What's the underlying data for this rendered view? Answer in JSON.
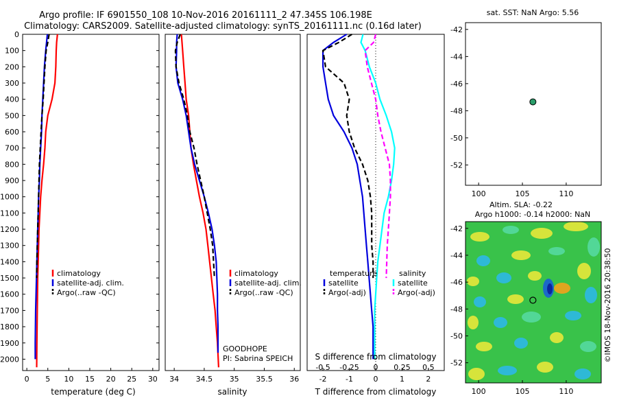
{
  "title": {
    "line1": "Argo profile: IF 6901550_108 10-Nov-2016 20161111_2 47.345S 106.198E",
    "line2": "Climatology: CARS2009. Satellite-adjusted climatology: synTS_20161111.nc (0.16d later)"
  },
  "colors": {
    "climatology": "#ff0000",
    "satellite": "#0000dd",
    "argo": "#000000",
    "sat_salinity": "#00ffff",
    "argo_salinity_adj": "#ff00ff",
    "float_marker": "#2a9d6a"
  },
  "chart_data": [
    {
      "type": "line",
      "name": "temperature-panel",
      "xlabel": "temperature (deg C)",
      "ylabel": "",
      "xlim": [
        -1,
        31.5
      ],
      "ylim": [
        2070,
        0
      ],
      "xticks": [
        0,
        5,
        10,
        15,
        20,
        25,
        30
      ],
      "yticks": [
        0,
        100,
        200,
        300,
        400,
        500,
        600,
        700,
        800,
        900,
        1000,
        1100,
        1200,
        1300,
        1400,
        1500,
        1600,
        1700,
        1800,
        1900,
        2000
      ],
      "legend": {
        "position": "lower-middle",
        "entries": [
          "climatology",
          "satellite-adj. clim.",
          "Argo(..raw -QC)"
        ]
      },
      "series": [
        {
          "name": "climatology",
          "style": "solid",
          "x": [
            7.3,
            7.1,
            7.0,
            6.9,
            6.7,
            6.0,
            5.0,
            4.5,
            4.3,
            4.0,
            3.6,
            3.3,
            3.1,
            2.9,
            2.8,
            2.7,
            2.6,
            2.55,
            2.5,
            2.45,
            2.4,
            2.35
          ],
          "y": [
            0,
            50,
            100,
            200,
            300,
            400,
            500,
            600,
            700,
            800,
            900,
            1000,
            1100,
            1200,
            1300,
            1400,
            1500,
            1600,
            1700,
            1800,
            1900,
            2050
          ]
        },
        {
          "name": "satellite-adj. clim.",
          "style": "solid",
          "x": [
            4.9,
            4.7,
            4.5,
            4.2,
            4.0,
            3.8,
            3.6,
            3.5,
            3.3,
            3.1,
            3.0,
            2.8,
            2.7,
            2.6,
            2.5,
            2.4,
            2.3,
            2.2,
            2.1,
            2.05,
            2.0,
            2.0
          ],
          "y": [
            0,
            50,
            100,
            200,
            300,
            400,
            500,
            600,
            700,
            800,
            900,
            1000,
            1100,
            1200,
            1300,
            1400,
            1500,
            1600,
            1700,
            1800,
            1900,
            2000
          ]
        },
        {
          "name": "Argo(..raw -QC)",
          "style": "dashed",
          "x": [
            5.3,
            5.0,
            4.6,
            4.3,
            4.1,
            3.9,
            3.6,
            3.4,
            3.2,
            3.0,
            2.9,
            2.8,
            2.7,
            2.6,
            2.5,
            2.4,
            2.35
          ],
          "y": [
            0,
            50,
            100,
            200,
            300,
            400,
            500,
            600,
            700,
            800,
            900,
            1000,
            1100,
            1200,
            1300,
            1400,
            1500
          ]
        }
      ]
    },
    {
      "type": "line",
      "name": "salinity-panel",
      "xlabel": "salinity",
      "ylabel": "",
      "xlim": [
        33.85,
        36.1
      ],
      "ylim": [
        2070,
        0
      ],
      "xticks": [
        34,
        34.5,
        35,
        35.5,
        36
      ],
      "xticklabels": [
        "34",
        "34.5",
        "35",
        "35.5",
        "36"
      ],
      "legend": {
        "position": "lower-middle",
        "entries": [
          "climatology",
          "satellite-adj. clim.",
          "Argo(..raw -QC)"
        ]
      },
      "annotations": [
        "GOODHOPE",
        "PI: Sabrina SPEICH"
      ],
      "series": [
        {
          "name": "climatology",
          "style": "solid",
          "x": [
            34.12,
            34.13,
            34.14,
            34.16,
            34.18,
            34.2,
            34.24,
            34.26,
            34.28,
            34.32,
            34.37,
            34.42,
            34.48,
            34.53,
            34.56,
            34.59,
            34.62,
            34.65,
            34.68,
            34.7,
            34.72,
            34.74
          ],
          "y": [
            0,
            50,
            100,
            200,
            300,
            400,
            500,
            600,
            700,
            800,
            900,
            1000,
            1100,
            1200,
            1300,
            1400,
            1500,
            1600,
            1700,
            1800,
            1900,
            2050
          ]
        },
        {
          "name": "satellite-adj. clim.",
          "style": "solid",
          "x": [
            34.05,
            34.04,
            34.04,
            34.03,
            34.06,
            34.14,
            34.2,
            34.24,
            34.28,
            34.34,
            34.42,
            34.5,
            34.57,
            34.63,
            34.67,
            34.7,
            34.71,
            34.72,
            34.72,
            34.73,
            34.73
          ],
          "y": [
            0,
            50,
            100,
            200,
            300,
            400,
            500,
            600,
            700,
            800,
            900,
            1000,
            1100,
            1200,
            1300,
            1400,
            1500,
            1600,
            1700,
            1800,
            1960
          ]
        },
        {
          "name": "Argo(..raw -QC)",
          "style": "dashed",
          "x": [
            34.1,
            34.05,
            34.02,
            34.03,
            34.08,
            34.16,
            34.22,
            34.26,
            34.33,
            34.38,
            34.44,
            34.5,
            34.55,
            34.6,
            34.64,
            34.67
          ],
          "y": [
            0,
            50,
            100,
            200,
            300,
            400,
            500,
            600,
            700,
            800,
            900,
            1000,
            1100,
            1200,
            1300,
            1500
          ]
        }
      ]
    },
    {
      "type": "line",
      "name": "difference-panel",
      "xlabel": "T difference from climatology",
      "xlabel_top": "S difference from climatology",
      "xlim": [
        -2.6,
        2.6
      ],
      "ylim": [
        2070,
        0
      ],
      "xticks": [
        -2,
        -1,
        0,
        1,
        2
      ],
      "xticklabels": [
        "-2",
        "-1",
        "0",
        "1",
        "2"
      ],
      "s_xticks": [
        -0.5,
        -0.25,
        0,
        0.25,
        0.5
      ],
      "s_xticklabels": [
        "-0.5",
        "-0.25",
        "0",
        "0.25",
        "0.5"
      ],
      "legend": {
        "position": "lower-middle",
        "groups": [
          {
            "title": "temperature",
            "entries": [
              "satellite",
              "Argo(-adj)"
            ]
          },
          {
            "title": "salinity",
            "entries": [
              "satellite",
              "Argo(-adj)"
            ]
          }
        ]
      },
      "series": [
        {
          "name": "T satellite",
          "style": "solid",
          "x": [
            -1.1,
            -1.6,
            -2.0,
            -2.0,
            -1.9,
            -1.8,
            -1.6,
            -1.2,
            -0.9,
            -0.7,
            -0.6,
            -0.5,
            -0.45,
            -0.4,
            -0.35,
            -0.3,
            -0.25,
            -0.2,
            -0.15,
            -0.1,
            -0.1
          ],
          "y": [
            0,
            50,
            100,
            200,
            300,
            400,
            500,
            600,
            700,
            800,
            900,
            1000,
            1100,
            1200,
            1300,
            1400,
            1500,
            1600,
            1700,
            1800,
            2000
          ]
        },
        {
          "name": "T Argo(-adj)",
          "style": "dashed",
          "x": [
            -0.9,
            -1.4,
            -2.0,
            -1.9,
            -1.2,
            -1.0,
            -1.1,
            -1.0,
            -0.8,
            -0.5,
            -0.3,
            -0.2,
            -0.15,
            -0.15,
            -0.15,
            -0.1,
            -0.1
          ],
          "y": [
            0,
            50,
            100,
            200,
            300,
            400,
            500,
            600,
            700,
            800,
            900,
            1000,
            1100,
            1200,
            1300,
            1400,
            1500
          ]
        },
        {
          "name": "S satellite",
          "style": "solid",
          "x": [
            -0.12,
            -0.14,
            -0.1,
            -0.06,
            0.0,
            0.04,
            0.1,
            0.15,
            0.18,
            0.17,
            0.15,
            0.12,
            0.08,
            0.06,
            0.04,
            0.02,
            0.01,
            0.0,
            -0.01,
            -0.01,
            -0.01
          ],
          "y": [
            0,
            50,
            100,
            200,
            300,
            400,
            500,
            600,
            700,
            800,
            900,
            1000,
            1100,
            1200,
            1300,
            1400,
            1500,
            1600,
            1700,
            1800,
            2000
          ]
        },
        {
          "name": "S Argo(-adj)",
          "style": "dashed",
          "x": [
            0.0,
            -0.02,
            -0.1,
            -0.08,
            -0.04,
            0.0,
            0.02,
            0.05,
            0.09,
            0.13,
            0.14,
            0.14,
            0.13,
            0.12,
            0.11,
            0.1
          ],
          "y": [
            0,
            50,
            100,
            200,
            300,
            400,
            500,
            600,
            700,
            800,
            900,
            1000,
            1100,
            1200,
            1300,
            1500
          ]
        }
      ]
    },
    {
      "type": "scatter",
      "name": "location-panel",
      "title": "sat. SST: NaN Argo: 5.56",
      "xlim": [
        98.5,
        114
      ],
      "ylim": [
        -53.5,
        -41.5
      ],
      "xticks": [
        100,
        105,
        110
      ],
      "yticks": [
        -42,
        -44,
        -46,
        -48,
        -50,
        -52
      ],
      "points": [
        {
          "x": 106.198,
          "y": -47.345
        }
      ]
    },
    {
      "type": "heatmap",
      "name": "sla-panel",
      "title_line1": "Altim. SLA: -0.22",
      "title_line2": "Argo h1000: -0.14 h2000: NaN",
      "xlim": [
        98.5,
        114
      ],
      "ylim": [
        -53.5,
        -41.5
      ],
      "xticks": [
        100,
        105,
        110
      ],
      "yticks": [
        -42,
        -44,
        -46,
        -48,
        -50,
        -52
      ],
      "points": [
        {
          "x": 106.198,
          "y": -47.345
        }
      ],
      "side_label": "©IMOS 18-Nov-2016 20:38:50"
    }
  ]
}
